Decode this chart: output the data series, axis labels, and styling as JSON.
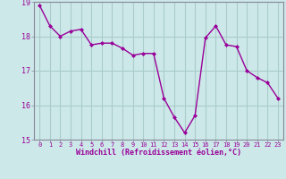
{
  "x": [
    0,
    1,
    2,
    3,
    4,
    5,
    6,
    7,
    8,
    9,
    10,
    11,
    12,
    13,
    14,
    15,
    16,
    17,
    18,
    19,
    20,
    21,
    22,
    23
  ],
  "y": [
    18.9,
    18.3,
    18.0,
    18.15,
    18.2,
    17.75,
    17.8,
    17.8,
    17.65,
    17.45,
    17.5,
    17.5,
    16.2,
    15.65,
    15.2,
    15.7,
    17.95,
    18.3,
    17.75,
    17.7,
    17.0,
    16.8,
    16.65,
    16.2
  ],
  "line_color": "#990099",
  "marker": "D",
  "marker_size": 2,
  "bg_color": "#cce8e8",
  "grid_color": "#aacccc",
  "xlabel": "Windchill (Refroidissement éolien,°C)",
  "xlabel_color": "#990099",
  "tick_color": "#990099",
  "spine_color": "#888899",
  "ylim": [
    15.0,
    19.0
  ],
  "xlim": [
    -0.5,
    23.5
  ],
  "yticks": [
    15,
    16,
    17,
    18,
    19
  ],
  "xticks": [
    0,
    1,
    2,
    3,
    4,
    5,
    6,
    7,
    8,
    9,
    10,
    11,
    12,
    13,
    14,
    15,
    16,
    17,
    18,
    19,
    20,
    21,
    22,
    23
  ],
  "tick_fontsize": 5,
  "xlabel_fontsize": 6,
  "ytick_fontsize": 6,
  "linewidth": 1.0
}
